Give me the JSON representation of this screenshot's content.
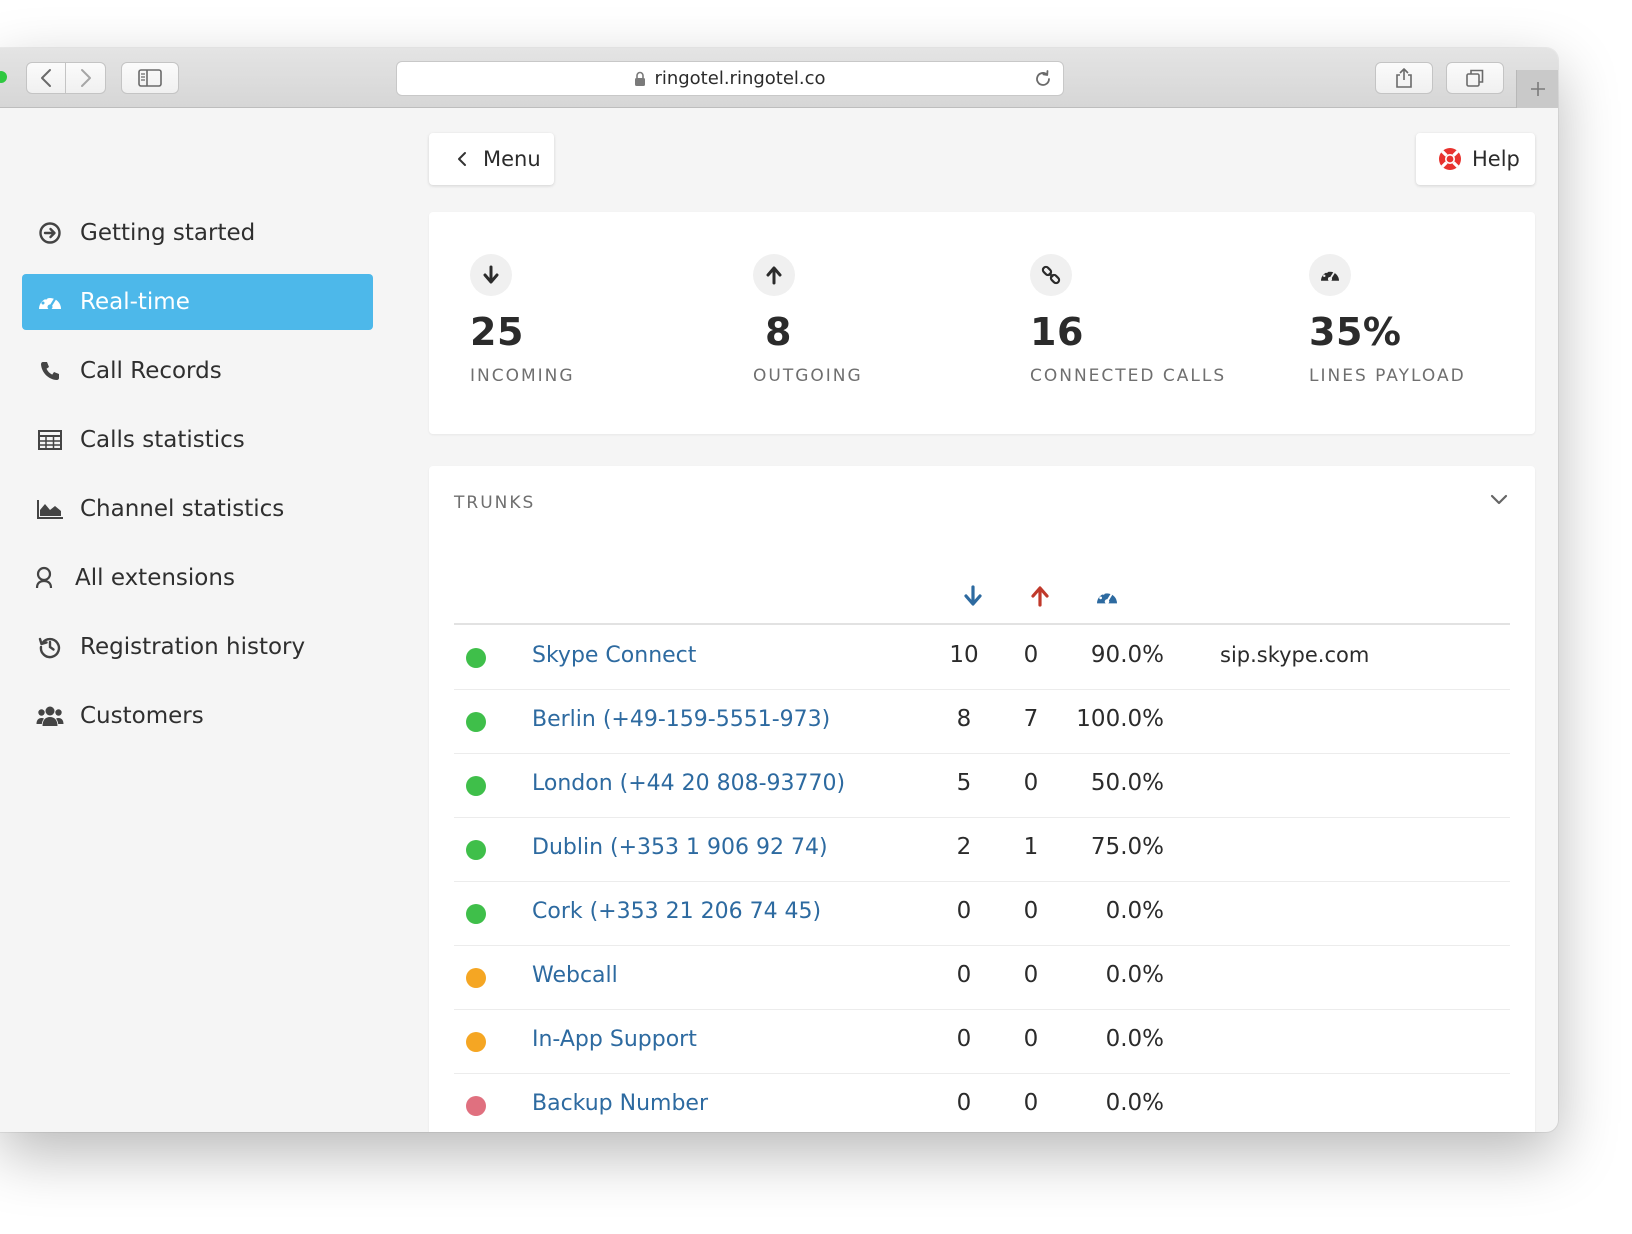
{
  "browser": {
    "url": "ringotel.ringotel.co"
  },
  "sidebar": {
    "items": [
      {
        "label": "Getting started",
        "icon": "arrow-circle-icon",
        "active": false
      },
      {
        "label": "Real-time",
        "icon": "dashboard-icon",
        "active": true
      },
      {
        "label": "Call Records",
        "icon": "phone-icon",
        "active": false
      },
      {
        "label": "Calls statistics",
        "icon": "table-icon",
        "active": false
      },
      {
        "label": "Channel statistics",
        "icon": "area-chart-icon",
        "active": false
      },
      {
        "label": "All extensions",
        "icon": "user-icon",
        "active": false
      },
      {
        "label": "Registration history",
        "icon": "history-icon",
        "active": false
      },
      {
        "label": "Customers",
        "icon": "users-icon",
        "active": false
      }
    ]
  },
  "header": {
    "menu_label": "Menu",
    "help_label": "Help"
  },
  "stats": [
    {
      "value": "25",
      "label": "INCOMING",
      "icon": "arrow-down-icon"
    },
    {
      "value": "8",
      "label": "OUTGOING",
      "icon": "arrow-up-icon"
    },
    {
      "value": "16",
      "label": "CONNECTED CALLS",
      "icon": "link-icon"
    },
    {
      "value": "35%",
      "label": "LINES PAYLOAD",
      "icon": "dashboard-icon"
    }
  ],
  "trunks": {
    "title": "TRUNKS",
    "columns": {
      "incoming_icon": "arrow-down-icon",
      "outgoing_icon": "arrow-up-icon",
      "payload_icon": "dashboard-icon"
    },
    "colors": {
      "online": "#3fbf4a",
      "warning": "#f5a623",
      "offline": "#e0707f",
      "incoming": "#2d6aa0",
      "outgoing": "#c0392b"
    },
    "rows": [
      {
        "status": "online",
        "name": "Skype Connect",
        "incoming": "10",
        "outgoing": "0",
        "payload": "90.0%",
        "host": "sip.skype.com"
      },
      {
        "status": "online",
        "name": "Berlin (+49-159-5551-973)",
        "incoming": "8",
        "outgoing": "7",
        "payload": "100.0%",
        "host": ""
      },
      {
        "status": "online",
        "name": "London (+44 20 808-93770)",
        "incoming": "5",
        "outgoing": "0",
        "payload": "50.0%",
        "host": ""
      },
      {
        "status": "online",
        "name": "Dublin (+353 1 906 92 74)",
        "incoming": "2",
        "outgoing": "1",
        "payload": "75.0%",
        "host": ""
      },
      {
        "status": "online",
        "name": "Cork (+353 21 206 74 45)",
        "incoming": "0",
        "outgoing": "0",
        "payload": "0.0%",
        "host": ""
      },
      {
        "status": "warning",
        "name": "Webcall",
        "incoming": "0",
        "outgoing": "0",
        "payload": "0.0%",
        "host": ""
      },
      {
        "status": "warning",
        "name": "In-App Support",
        "incoming": "0",
        "outgoing": "0",
        "payload": "0.0%",
        "host": ""
      },
      {
        "status": "offline",
        "name": "Backup Number",
        "incoming": "0",
        "outgoing": "0",
        "payload": "0.0%",
        "host": ""
      }
    ]
  }
}
